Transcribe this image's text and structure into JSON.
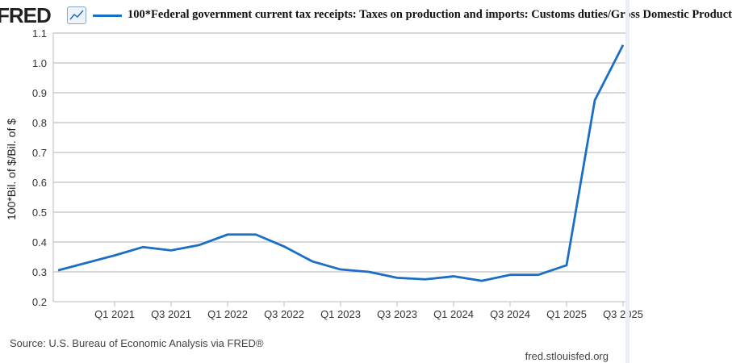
{
  "header": {
    "logo": "FRED",
    "title": "100*Federal government current tax receipts: Taxes on production and imports: Customs duties/Gross Domestic Product"
  },
  "footer": {
    "source": "Source: U.S. Bureau of Economic Analysis via FRED®",
    "credit": "fred.stlouisfed.org"
  },
  "colors": {
    "series": "#1a6fc4",
    "grid": "#cccccc"
  },
  "chart_data": {
    "type": "line",
    "title": "100*Federal government current tax receipts: Taxes on production and imports: Customs duties/Gross Domestic Product",
    "ylabel": "100*Bil. of $/Bil. of $",
    "xlabel": "",
    "ylim": [
      0.2,
      1.1
    ],
    "yticks": [
      "0.2",
      "0.3",
      "0.4",
      "0.5",
      "0.6",
      "0.7",
      "0.8",
      "0.9",
      "1.0",
      "1.1"
    ],
    "xticks": [
      "Q1 2021",
      "Q3 2021",
      "Q1 2022",
      "Q3 2022",
      "Q1 2023",
      "Q3 2023",
      "Q1 2024",
      "Q3 2024",
      "Q1 2025",
      "Q3 2025"
    ],
    "grid": true,
    "legend": "top-left",
    "x": [
      "2020 Q3",
      "2020 Q4",
      "2021 Q1",
      "2021 Q2",
      "2021 Q3",
      "2021 Q4",
      "2022 Q1",
      "2022 Q2",
      "2022 Q3",
      "2022 Q4",
      "2023 Q1",
      "2023 Q2",
      "2023 Q3",
      "2023 Q4",
      "2024 Q1",
      "2024 Q2",
      "2024 Q3",
      "2024 Q4",
      "2025 Q1",
      "2025 Q2",
      "2025 Q3"
    ],
    "series": [
      {
        "values": [
          0.305,
          0.33,
          0.355,
          0.383,
          0.372,
          0.39,
          0.425,
          0.425,
          0.385,
          0.335,
          0.308,
          0.3,
          0.28,
          0.275,
          0.285,
          0.27,
          0.29,
          0.29,
          0.322,
          0.875,
          1.06
        ]
      }
    ]
  }
}
